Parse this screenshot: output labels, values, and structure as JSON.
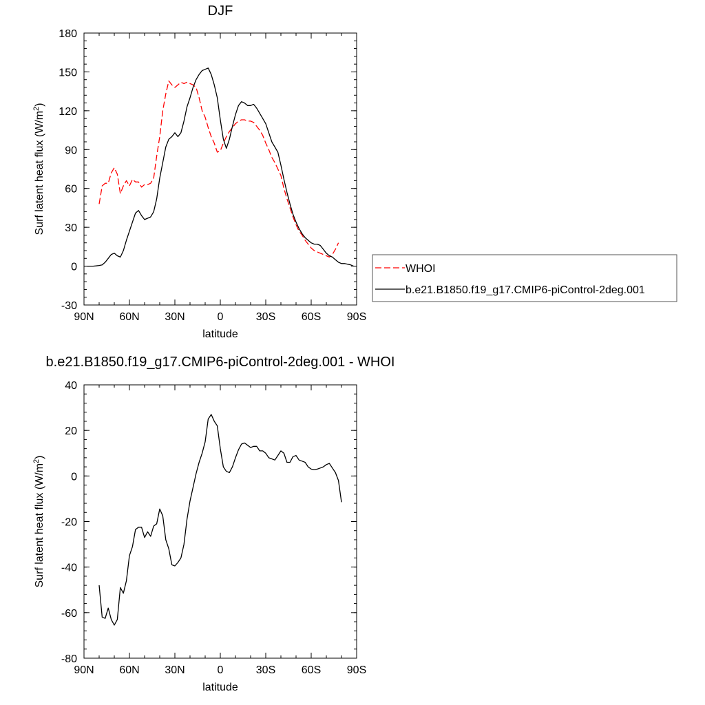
{
  "chart_data": [
    {
      "type": "line",
      "title": "DJF",
      "xlabel": "latitude",
      "ylabel": "Surf latent heat flux (W/m",
      "ylabel_sup": "2",
      "ylabel_tail": ")",
      "xlim": [
        -90,
        90
      ],
      "ylim": [
        -30,
        180
      ],
      "x_ticks": [
        -90,
        -60,
        -30,
        0,
        30,
        60,
        90
      ],
      "x_tick_labels": [
        "90N",
        "60N",
        "30N",
        "0",
        "30S",
        "60S",
        "90S"
      ],
      "y_ticks": [
        -30,
        0,
        30,
        60,
        90,
        120,
        150,
        180
      ],
      "y_tick_labels": [
        "-30",
        "0",
        "30",
        "60",
        "90",
        "120",
        "150",
        "180"
      ],
      "grid": false,
      "legend_placement": "right",
      "series": [
        {
          "name": "WHOI",
          "color": "#ff0000",
          "dash": "dashed",
          "points": [
            [
              -80,
              48
            ],
            [
              -78,
              62
            ],
            [
              -76,
              64
            ],
            [
              -74,
              64
            ],
            [
              -72,
              72
            ],
            [
              -70,
              76
            ],
            [
              -68,
              71
            ],
            [
              -66,
              56
            ],
            [
              -64,
              62
            ],
            [
              -62,
              66
            ],
            [
              -60,
              62
            ],
            [
              -58,
              67
            ],
            [
              -56,
              65
            ],
            [
              -54,
              65
            ],
            [
              -52,
              61
            ],
            [
              -50,
              63
            ],
            [
              -48,
              63
            ],
            [
              -46,
              64
            ],
            [
              -44,
              68
            ],
            [
              -42,
              85
            ],
            [
              -40,
              100
            ],
            [
              -38,
              120
            ],
            [
              -36,
              133
            ],
            [
              -34,
              143
            ],
            [
              -32,
              140
            ],
            [
              -30,
              138
            ],
            [
              -28,
              140
            ],
            [
              -26,
              142
            ],
            [
              -24,
              141
            ],
            [
              -22,
              142
            ],
            [
              -20,
              141
            ],
            [
              -18,
              140
            ],
            [
              -16,
              138
            ],
            [
              -14,
              130
            ],
            [
              -12,
              120
            ],
            [
              -10,
              115
            ],
            [
              -8,
              107
            ],
            [
              -6,
              100
            ],
            [
              -4,
              95
            ],
            [
              -2,
              88
            ],
            [
              0,
              89
            ],
            [
              2,
              95
            ],
            [
              4,
              100
            ],
            [
              6,
              104
            ],
            [
              8,
              107
            ],
            [
              10,
              110
            ],
            [
              12,
              112
            ],
            [
              14,
              113
            ],
            [
              16,
              113
            ],
            [
              18,
              112
            ],
            [
              20,
              112
            ],
            [
              22,
              111
            ],
            [
              24,
              108
            ],
            [
              26,
              105
            ],
            [
              28,
              101
            ],
            [
              30,
              95
            ],
            [
              32,
              90
            ],
            [
              34,
              84
            ],
            [
              36,
              80
            ],
            [
              38,
              75
            ],
            [
              40,
              70
            ],
            [
              42,
              60
            ],
            [
              44,
              52
            ],
            [
              46,
              45
            ],
            [
              48,
              38
            ],
            [
              50,
              32
            ],
            [
              52,
              27
            ],
            [
              54,
              24
            ],
            [
              56,
              20
            ],
            [
              58,
              17
            ],
            [
              60,
              14
            ],
            [
              62,
              12
            ],
            [
              64,
              11
            ],
            [
              66,
              10
            ],
            [
              68,
              9
            ],
            [
              70,
              8
            ],
            [
              72,
              7
            ],
            [
              74,
              9
            ],
            [
              76,
              13
            ],
            [
              78,
              18
            ]
          ]
        },
        {
          "name": "b.e21.B1850.f19_g17.CMIP6-piControl-2deg.001",
          "color": "#000000",
          "dash": "solid",
          "points": [
            [
              -88,
              0
            ],
            [
              -86,
              0
            ],
            [
              -84,
              0
            ],
            [
              -82,
              0.2
            ],
            [
              -80,
              0.5
            ],
            [
              -78,
              1
            ],
            [
              -76,
              3
            ],
            [
              -74,
              6
            ],
            [
              -72,
              9
            ],
            [
              -70,
              10
            ],
            [
              -68,
              8
            ],
            [
              -66,
              7
            ],
            [
              -64,
              12
            ],
            [
              -62,
              20
            ],
            [
              -60,
              27
            ],
            [
              -58,
              34
            ],
            [
              -56,
              41
            ],
            [
              -54,
              43
            ],
            [
              -52,
              39
            ],
            [
              -50,
              36
            ],
            [
              -48,
              37
            ],
            [
              -46,
              38
            ],
            [
              -44,
              42
            ],
            [
              -42,
              52
            ],
            [
              -40,
              68
            ],
            [
              -38,
              80
            ],
            [
              -36,
              92
            ],
            [
              -34,
              98
            ],
            [
              -32,
              100
            ],
            [
              -30,
              103
            ],
            [
              -28,
              100
            ],
            [
              -26,
              103
            ],
            [
              -24,
              112
            ],
            [
              -22,
              123
            ],
            [
              -20,
              130
            ],
            [
              -18,
              138
            ],
            [
              -16,
              144
            ],
            [
              -14,
              148
            ],
            [
              -12,
              151
            ],
            [
              -10,
              152
            ],
            [
              -8,
              153
            ],
            [
              -6,
              148
            ],
            [
              -4,
              140
            ],
            [
              -2,
              130
            ],
            [
              0,
              113
            ],
            [
              2,
              98
            ],
            [
              4,
              91
            ],
            [
              6,
              98
            ],
            [
              8,
              108
            ],
            [
              10,
              117
            ],
            [
              12,
              124
            ],
            [
              14,
              127
            ],
            [
              16,
              126
            ],
            [
              18,
              124
            ],
            [
              20,
              124
            ],
            [
              22,
              125
            ],
            [
              24,
              122
            ],
            [
              26,
              118
            ],
            [
              28,
              114
            ],
            [
              30,
              110
            ],
            [
              32,
              103
            ],
            [
              34,
              96
            ],
            [
              36,
              92
            ],
            [
              38,
              88
            ],
            [
              40,
              78
            ],
            [
              42,
              67
            ],
            [
              44,
              57
            ],
            [
              46,
              48
            ],
            [
              48,
              40
            ],
            [
              50,
              34
            ],
            [
              52,
              29
            ],
            [
              54,
              25
            ],
            [
              56,
              22
            ],
            [
              58,
              20
            ],
            [
              60,
              18
            ],
            [
              62,
              17
            ],
            [
              64,
              17
            ],
            [
              66,
              16
            ],
            [
              68,
              13
            ],
            [
              70,
              10
            ],
            [
              72,
              8
            ],
            [
              74,
              7
            ],
            [
              76,
              5
            ],
            [
              78,
              3
            ],
            [
              80,
              2
            ],
            [
              82,
              2
            ],
            [
              84,
              1.5
            ],
            [
              86,
              1
            ],
            [
              88,
              0
            ]
          ]
        }
      ]
    },
    {
      "type": "line",
      "title": "b.e21.B1850.f19_g17.CMIP6-piControl-2deg.001 - WHOI",
      "xlabel": "latitude",
      "ylabel": "Surf latent heat flux (W/m",
      "ylabel_sup": "2",
      "ylabel_tail": ")",
      "xlim": [
        -90,
        90
      ],
      "ylim": [
        -80,
        40
      ],
      "x_ticks": [
        -90,
        -60,
        -30,
        0,
        30,
        60,
        90
      ],
      "x_tick_labels": [
        "90N",
        "60N",
        "30N",
        "0",
        "30S",
        "60S",
        "90S"
      ],
      "y_ticks": [
        -80,
        -60,
        -40,
        -20,
        0,
        20,
        40
      ],
      "y_tick_labels": [
        "-80",
        "-60",
        "-40",
        "-20",
        "0",
        "20",
        "40"
      ],
      "grid": false,
      "series": [
        {
          "color": "#000000",
          "dash": "solid",
          "points": [
            [
              -80,
              -48
            ],
            [
              -78,
              -62
            ],
            [
              -76,
              -62.5
            ],
            [
              -74,
              -58
            ],
            [
              -72,
              -63
            ],
            [
              -70,
              -65.5
            ],
            [
              -68,
              -63
            ],
            [
              -66,
              -49
            ],
            [
              -64,
              -51.5
            ],
            [
              -62,
              -46
            ],
            [
              -60,
              -35
            ],
            [
              -58,
              -31
            ],
            [
              -56,
              -23.5
            ],
            [
              -54,
              -22.5
            ],
            [
              -52,
              -22.5
            ],
            [
              -50,
              -27
            ],
            [
              -48,
              -24.5
            ],
            [
              -46,
              -26.5
            ],
            [
              -44,
              -22
            ],
            [
              -42,
              -21
            ],
            [
              -40,
              -14.5
            ],
            [
              -38,
              -17.5
            ],
            [
              -36,
              -28
            ],
            [
              -34,
              -32
            ],
            [
              -32,
              -39
            ],
            [
              -30,
              -39.5
            ],
            [
              -28,
              -38
            ],
            [
              -26,
              -36
            ],
            [
              -24,
              -30
            ],
            [
              -22,
              -19
            ],
            [
              -20,
              -11
            ],
            [
              -18,
              -5
            ],
            [
              -16,
              1
            ],
            [
              -14,
              6
            ],
            [
              -12,
              10
            ],
            [
              -10,
              15
            ],
            [
              -8,
              25
            ],
            [
              -6,
              27
            ],
            [
              -4,
              24
            ],
            [
              -2,
              22
            ],
            [
              0,
              12
            ],
            [
              2,
              4
            ],
            [
              4,
              2
            ],
            [
              6,
              1.5
            ],
            [
              8,
              4
            ],
            [
              10,
              8
            ],
            [
              12,
              11.5
            ],
            [
              14,
              14
            ],
            [
              16,
              14.5
            ],
            [
              18,
              13.5
            ],
            [
              20,
              12.5
            ],
            [
              22,
              13
            ],
            [
              24,
              13
            ],
            [
              26,
              11
            ],
            [
              28,
              11
            ],
            [
              30,
              10
            ],
            [
              32,
              8
            ],
            [
              34,
              7.5
            ],
            [
              36,
              7
            ],
            [
              38,
              9
            ],
            [
              40,
              11
            ],
            [
              42,
              10
            ],
            [
              44,
              6
            ],
            [
              46,
              6
            ],
            [
              48,
              8.5
            ],
            [
              50,
              9
            ],
            [
              52,
              7
            ],
            [
              54,
              6.5
            ],
            [
              56,
              6
            ],
            [
              58,
              4
            ],
            [
              60,
              3
            ],
            [
              62,
              2.8
            ],
            [
              64,
              3
            ],
            [
              66,
              3.5
            ],
            [
              68,
              4
            ],
            [
              70,
              5
            ],
            [
              72,
              5.5
            ],
            [
              74,
              3.5
            ],
            [
              76,
              1.5
            ],
            [
              78,
              -2
            ],
            [
              80,
              -11.5
            ]
          ]
        }
      ]
    }
  ]
}
